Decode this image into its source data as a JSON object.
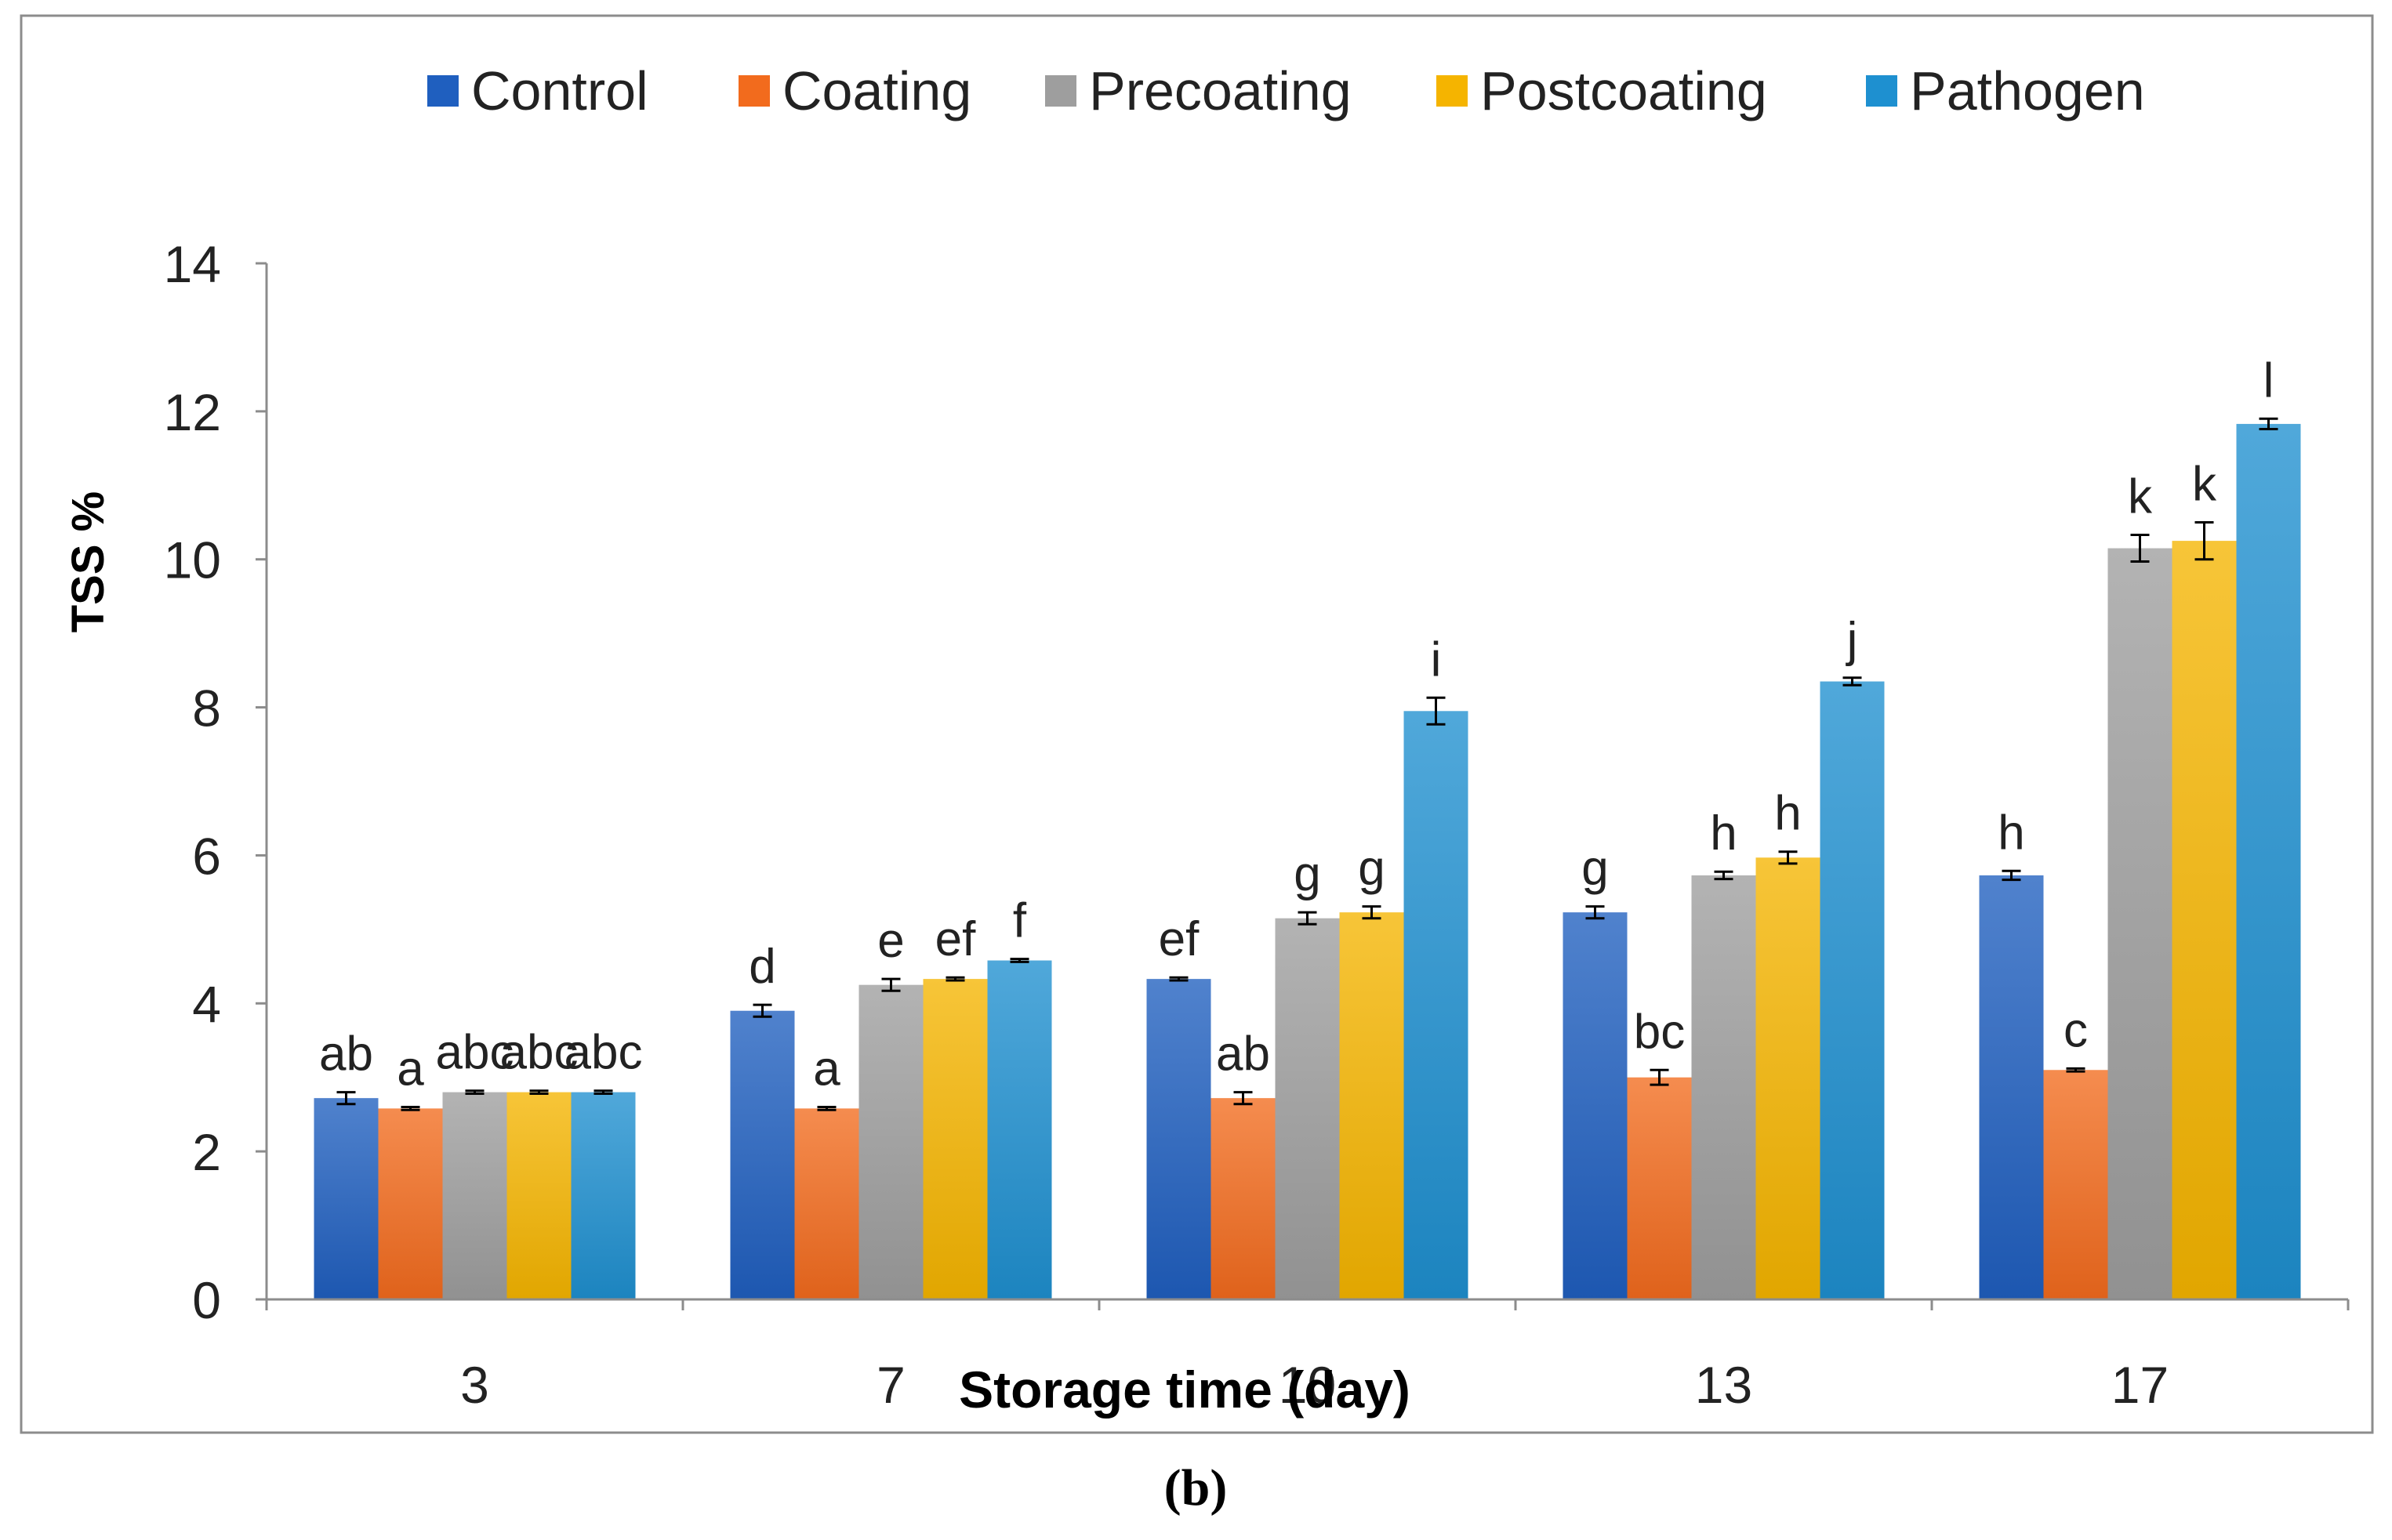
{
  "chart_data": {
    "type": "bar",
    "title": "",
    "xlabel": "Storage time (day)",
    "ylabel": "TSS %",
    "ylim": [
      0,
      14
    ],
    "yticks": [
      "0",
      "2",
      "4",
      "6",
      "8",
      "10",
      "12",
      "14"
    ],
    "categories": [
      "3",
      "7",
      "10",
      "13",
      "17"
    ],
    "legend_position": "top",
    "grid": false,
    "panel_label": "(b)",
    "series": [
      {
        "name": "Control",
        "color": "#1F5FBF",
        "values": [
          2.72,
          3.9,
          4.33,
          5.23,
          5.73
        ],
        "errors": [
          0.08,
          0.08,
          0.02,
          0.08,
          0.06
        ],
        "letters": [
          "ab",
          "d",
          "ef",
          "g",
          "h"
        ]
      },
      {
        "name": "Coating",
        "color": "#F26B1D",
        "values": [
          2.58,
          2.58,
          2.72,
          3.0,
          3.1
        ],
        "errors": [
          0.02,
          0.02,
          0.08,
          0.1,
          0.02
        ],
        "letters": [
          "a",
          "a",
          "ab",
          "bc",
          "c"
        ]
      },
      {
        "name": "Precoating",
        "color": "#9E9E9E",
        "values": [
          2.8,
          4.25,
          5.15,
          5.73,
          10.15
        ],
        "errors": [
          0.02,
          0.08,
          0.08,
          0.05,
          0.18
        ],
        "letters": [
          "abc",
          "e",
          "g",
          "h",
          "k"
        ]
      },
      {
        "name": "Postcoating",
        "color": "#F5B400",
        "values": [
          2.8,
          4.33,
          5.23,
          5.97,
          10.25
        ],
        "errors": [
          0.02,
          0.02,
          0.08,
          0.08,
          0.25
        ],
        "letters": [
          "abc",
          "ef",
          "g",
          "h",
          "k"
        ]
      },
      {
        "name": "Pathogen",
        "color": "#1E90D0",
        "values": [
          2.8,
          4.58,
          7.95,
          8.35,
          11.83
        ],
        "errors": [
          0.02,
          0.02,
          0.18,
          0.05,
          0.07
        ],
        "letters": [
          "abc",
          "f",
          "i",
          "j",
          "l"
        ]
      }
    ]
  }
}
